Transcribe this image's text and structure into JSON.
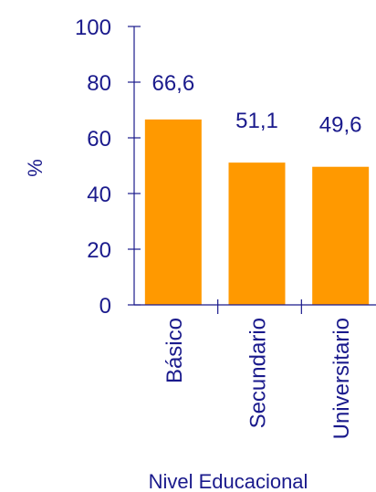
{
  "chart_data": {
    "type": "bar",
    "categories": [
      "Básico",
      "Secundario",
      "Universitario"
    ],
    "values": [
      66.6,
      51.1,
      49.6
    ],
    "data_labels": [
      "66,6",
      "51,1",
      "49,6"
    ],
    "title": "",
    "xlabel": "Nivel Educacional",
    "ylabel": "%",
    "ylim": [
      0,
      100
    ],
    "yticks": [
      "0",
      "20",
      "40",
      "60",
      "80",
      "100"
    ],
    "grid": false,
    "bar_color": "#ff9900",
    "text_color": "#1a1a8c"
  }
}
